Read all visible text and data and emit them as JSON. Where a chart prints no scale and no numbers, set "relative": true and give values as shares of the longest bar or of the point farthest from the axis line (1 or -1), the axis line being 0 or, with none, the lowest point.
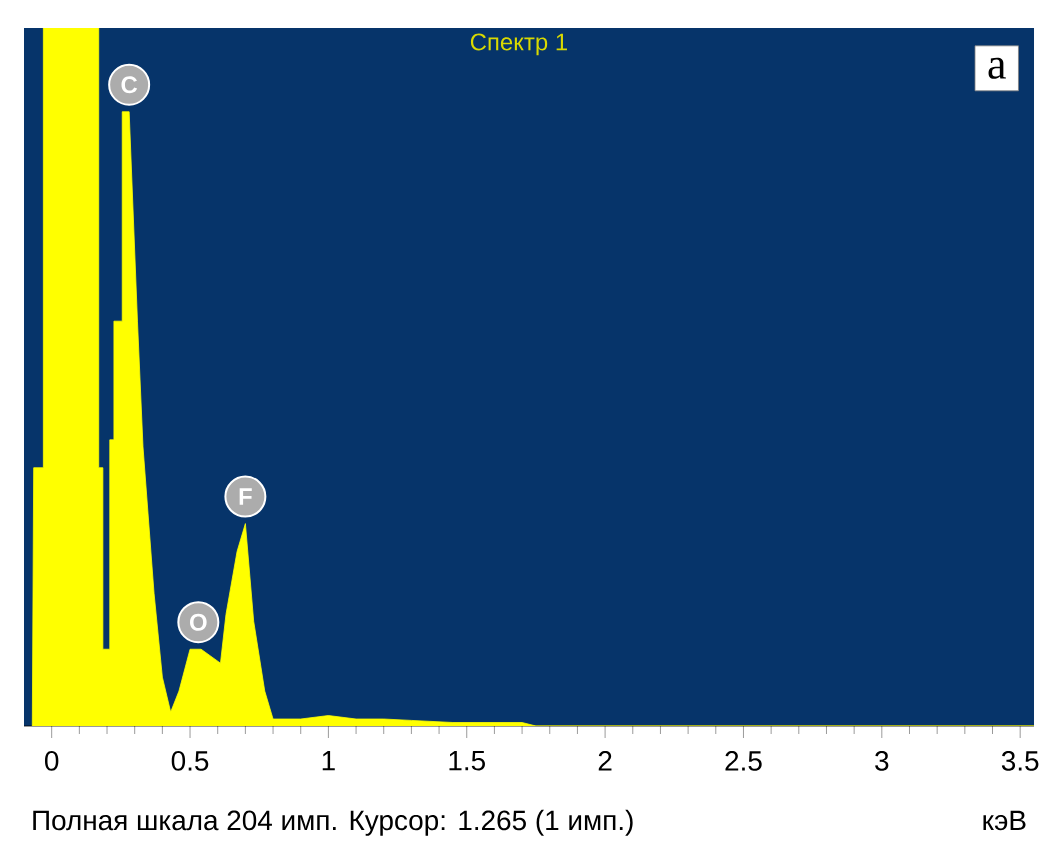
{
  "chart_data": {
    "type": "area",
    "title": "Спектр 1",
    "xlabel": "кэВ",
    "relative": true,
    "color": "#ffff00",
    "xlim": [
      -0.1,
      3.55
    ],
    "xticks": [
      0,
      0.5,
      1,
      1.5,
      2,
      2.5,
      3,
      3.5
    ],
    "x": [
      -0.07,
      -0.065,
      -0.03,
      -0.03,
      0.17,
      0.17,
      0.185,
      0.185,
      0.21,
      0.21,
      0.225,
      0.225,
      0.255,
      0.255,
      0.28,
      0.31,
      0.33,
      0.37,
      0.4,
      0.43,
      0.46,
      0.5,
      0.54,
      0.61,
      0.63,
      0.67,
      0.7,
      0.73,
      0.77,
      0.8,
      0.9,
      1.0,
      1.1,
      1.2,
      1.3,
      1.45,
      1.7,
      1.75,
      3.55
    ],
    "values": [
      0,
      0.37,
      0.37,
      1,
      1,
      0.37,
      0.37,
      0.11,
      0.11,
      0.41,
      0.41,
      0.58,
      0.58,
      0.88,
      0.88,
      0.58,
      0.4,
      0.19,
      0.07,
      0.02,
      0.05,
      0.11,
      0.11,
      0.09,
      0.16,
      0.25,
      0.29,
      0.15,
      0.05,
      0.01,
      0.01,
      0.015,
      0.01,
      0.01,
      0.008,
      0.005,
      0.005,
      0,
      0
    ],
    "annotations": [
      "a",
      "Полная шкала 204 имп. Курсор: 1.265  (1 имп.)",
      {
        "text": "C",
        "x": 0.28,
        "y": 0.88
      },
      {
        "text": "O",
        "x": 0.53,
        "y": 0.11
      },
      {
        "text": "F",
        "x": 0.7,
        "y": 0.29
      }
    ]
  }
}
